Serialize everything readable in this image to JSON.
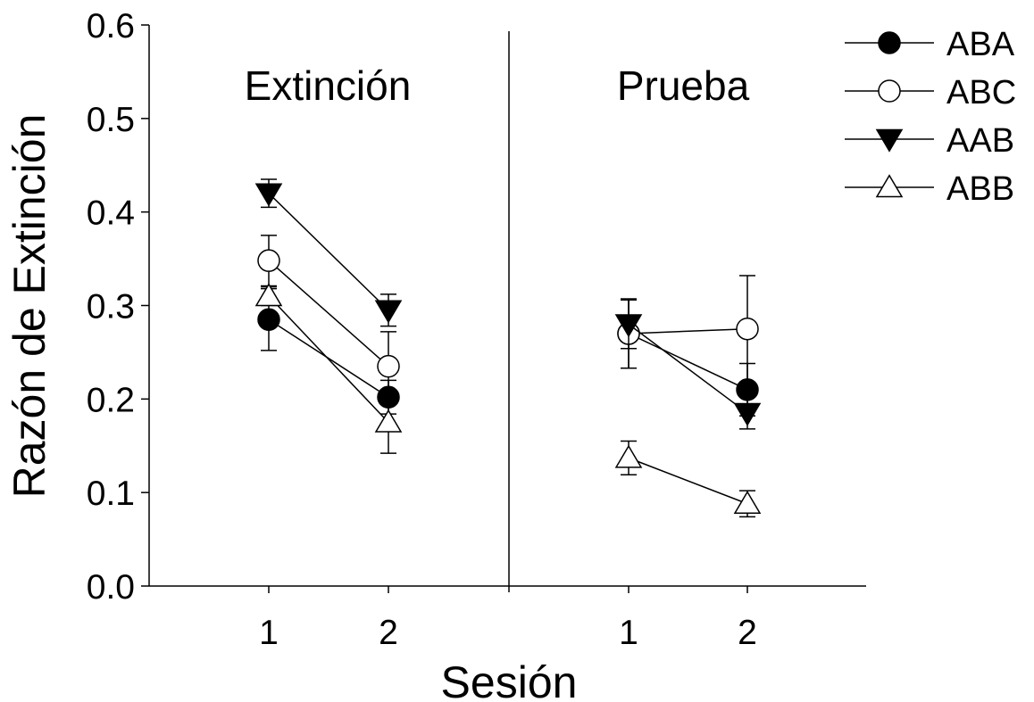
{
  "chart_data": {
    "type": "line",
    "xlabel": "Sesión",
    "ylabel": "Razón de Extinción",
    "ylim": [
      0,
      0.6
    ],
    "yticks": [
      "0.0",
      "0.1",
      "0.2",
      "0.3",
      "0.4",
      "0.5",
      "0.6"
    ],
    "grid": false,
    "legend_position": "top-right",
    "panels": [
      {
        "label": "Extinción",
        "sessions": [
          "1",
          "2"
        ]
      },
      {
        "label": "Prueba",
        "sessions": [
          "1",
          "2"
        ]
      }
    ],
    "series": [
      {
        "name": "ABA",
        "marker": "filled-circle",
        "values": [
          [
            0.285,
            0.202
          ],
          [
            0.27,
            0.21
          ]
        ],
        "errors": [
          [
            0.033,
            0.018
          ],
          [
            0.037,
            0.028
          ]
        ]
      },
      {
        "name": "ABC",
        "marker": "open-circle",
        "values": [
          [
            0.348,
            0.235
          ],
          [
            0.27,
            0.275
          ]
        ],
        "errors": [
          [
            0.027,
            0.037
          ],
          [
            0.037,
            0.057
          ]
        ]
      },
      {
        "name": "AAB",
        "marker": "filled-triangle-down",
        "values": [
          [
            0.42,
            0.295
          ],
          [
            0.28,
            0.185
          ]
        ],
        "errors": [
          [
            0.015,
            0.017
          ],
          [
            0.026,
            0.017
          ]
        ]
      },
      {
        "name": "ABB",
        "marker": "open-triangle-up",
        "values": [
          [
            0.31,
            0.175
          ],
          [
            0.137,
            0.088
          ]
        ],
        "errors": [
          [
            0.01,
            0.033
          ],
          [
            0.018,
            0.014
          ]
        ]
      }
    ]
  }
}
